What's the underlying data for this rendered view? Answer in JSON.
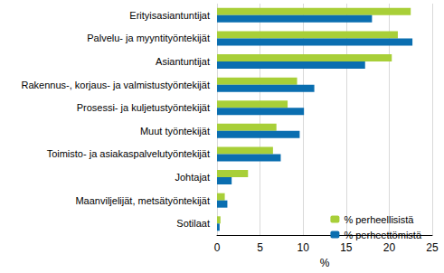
{
  "chart_data": {
    "type": "bar",
    "orientation": "horizontal",
    "x_label": "%",
    "categories": [
      "Erityisasiantuntijat",
      "Palvelu- ja myyntityöntekijät",
      "Asiantuntijat",
      "Rakennus-, korjaus- ja valmistustyöntekijät",
      "Prosessi- ja kuljetustyöntekijät",
      "Muut työntekijät",
      "Toimisto- ja asiakaspalvelutyöntekijät",
      "Johtajat",
      "Maanviljelijät, metsätyöntekijät",
      "Sotilaat"
    ],
    "series": [
      {
        "name": "% perheellisistä",
        "color": "#a8cf38",
        "values": [
          22.5,
          21.0,
          20.3,
          9.3,
          8.2,
          6.9,
          6.5,
          3.6,
          0.9,
          0.4
        ]
      },
      {
        "name": "% perheettömistä",
        "color": "#0a6eb0",
        "values": [
          18.0,
          22.7,
          17.2,
          11.3,
          10.1,
          9.6,
          7.4,
          1.7,
          1.2,
          0.3
        ]
      }
    ],
    "xlim": [
      0,
      25
    ],
    "xticks": [
      0,
      5,
      10,
      15,
      20,
      25
    ],
    "grid": true,
    "legend": "lower right"
  }
}
